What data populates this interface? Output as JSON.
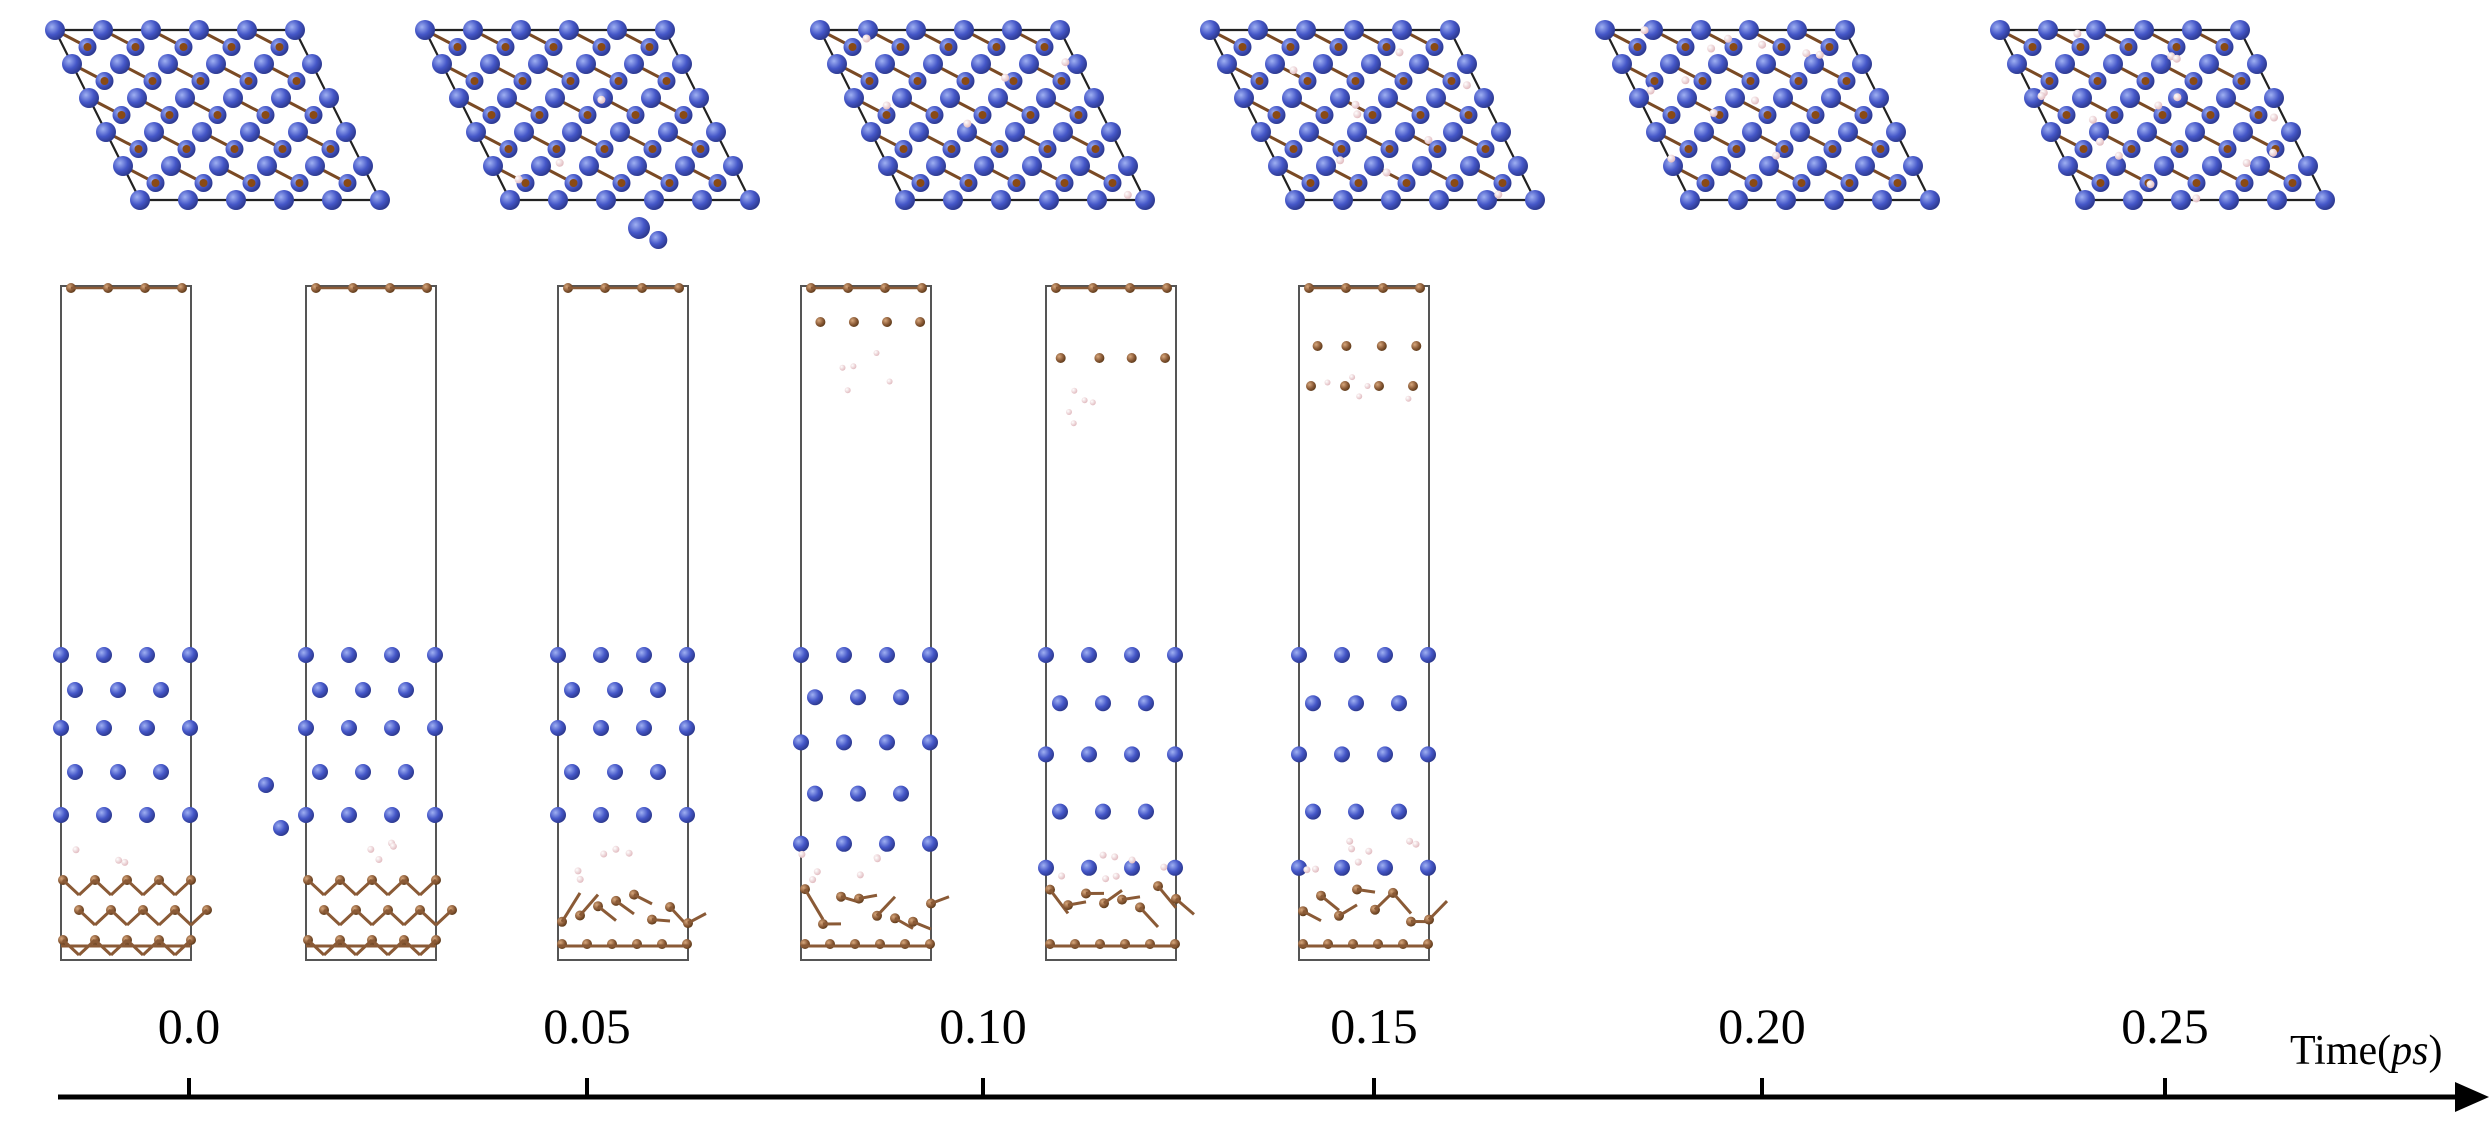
{
  "frames": [
    {
      "time": "0.0"
    },
    {
      "time": "0.05"
    },
    {
      "time": "0.10"
    },
    {
      "time": "0.15"
    },
    {
      "time": "0.20"
    },
    {
      "time": "0.25"
    }
  ],
  "axis": {
    "label_prefix": "Time(",
    "label_unit": "ps",
    "label_suffix": ")"
  },
  "colors": {
    "blue_atom": "#4557c8",
    "blue_atom_light": "#8fa0ea",
    "brown_atom": "#8a5a36",
    "brown_atom_light": "#c89a70",
    "pink_atom": "#eccfd2",
    "cell_line": "#555555",
    "axis_line": "#000000"
  }
}
